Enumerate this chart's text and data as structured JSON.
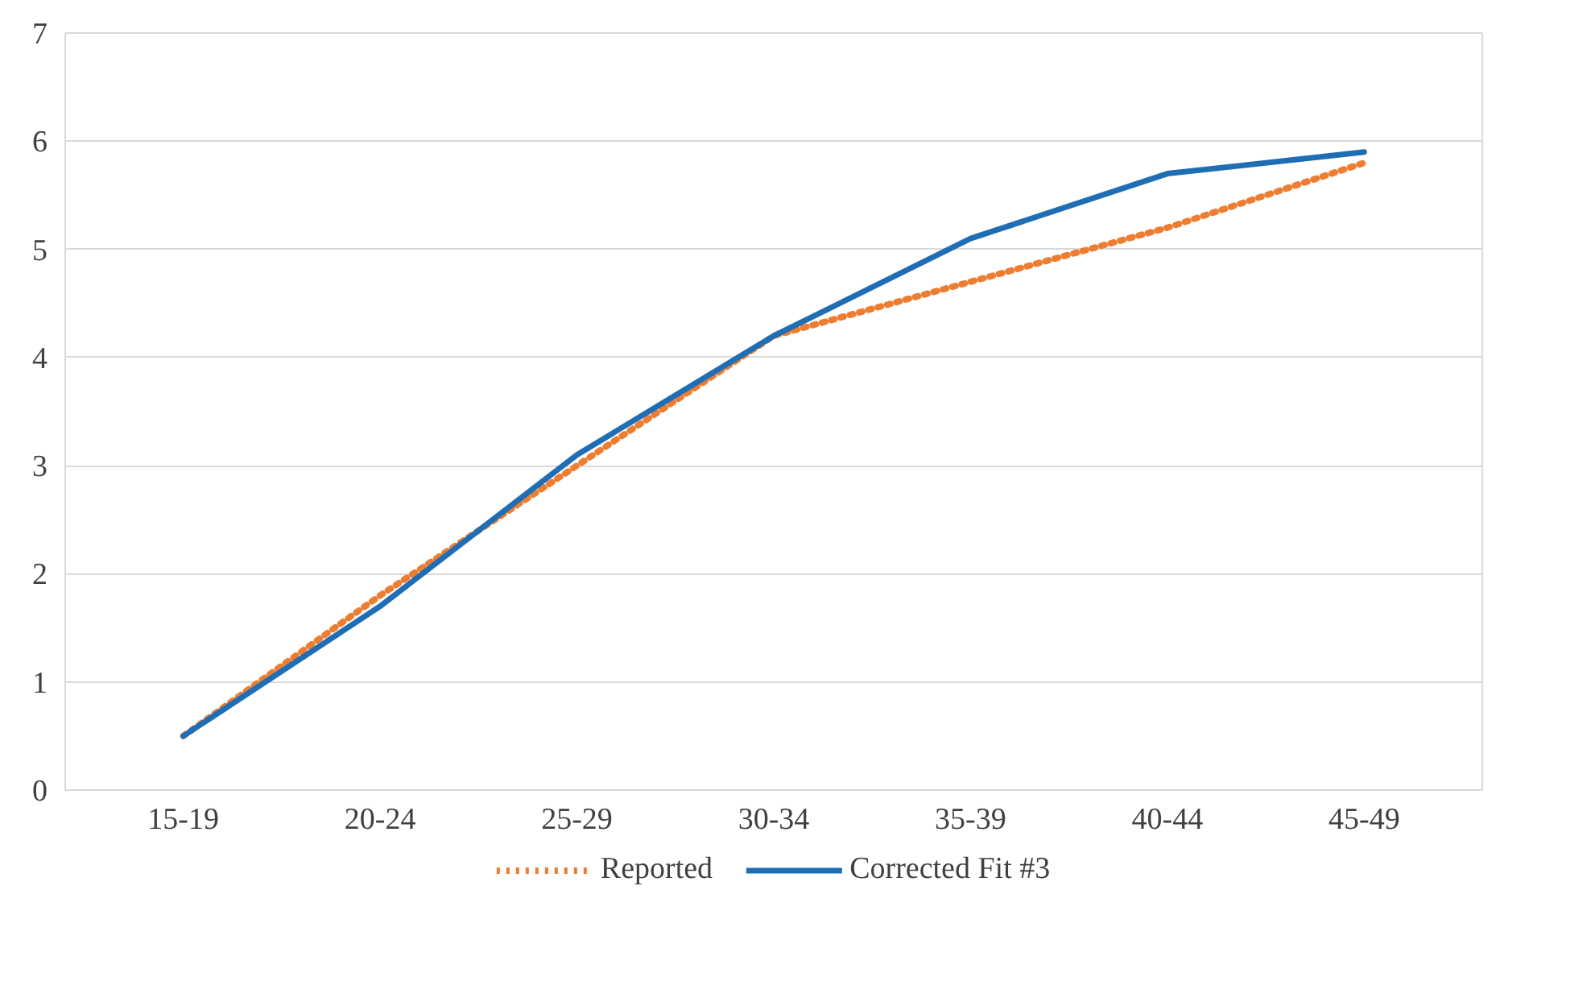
{
  "chart_data": {
    "type": "line",
    "categories": [
      "15-19",
      "20-24",
      "25-29",
      "30-34",
      "35-39",
      "40-44",
      "45-49"
    ],
    "series": [
      {
        "name": "Reported",
        "color": "#ed7d31",
        "line_style": "dotted",
        "values": [
          0.5,
          1.8,
          3.0,
          4.2,
          4.7,
          5.2,
          5.8
        ]
      },
      {
        "name": "Corrected Fit #3",
        "color": "#1f6eb5",
        "line_style": "solid",
        "values": [
          0.5,
          1.7,
          3.1,
          4.2,
          5.1,
          5.7,
          5.9
        ]
      }
    ],
    "ylim": [
      0,
      7
    ],
    "yticks": [
      0,
      1,
      2,
      3,
      4,
      5,
      6,
      7
    ],
    "grid": "y",
    "legend": "bottom"
  }
}
